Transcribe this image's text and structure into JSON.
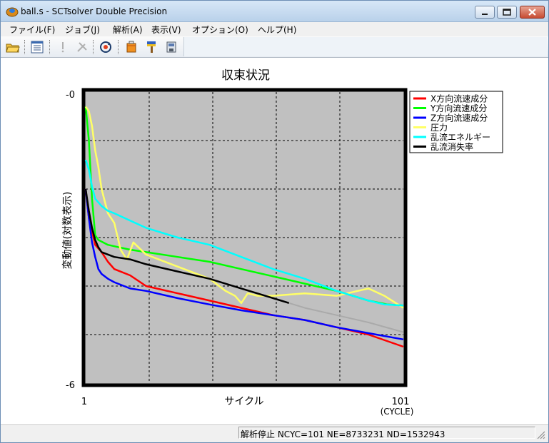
{
  "window": {
    "title": "ball.s - SCTsolver Double Precision",
    "controls": [
      "minimize",
      "maximize",
      "close"
    ]
  },
  "menu": [
    {
      "label": "ファイル(F)"
    },
    {
      "label": "ジョブ(J)"
    },
    {
      "label": "解析(A)"
    },
    {
      "label": "表示(V)"
    },
    {
      "label": "オプション(O)"
    },
    {
      "label": "ヘルプ(H)"
    }
  ],
  "toolbar": {
    "icons": [
      "open-folder-icon",
      "list-icon",
      "stop-icon",
      "tools-icon",
      "refresh-icon",
      "paint-bucket-icon",
      "brush-icon",
      "save-icon"
    ]
  },
  "status": {
    "text": "解析停止  NCYC=101  NE=8733231  ND=1532943"
  },
  "chart_data": {
    "type": "line",
    "title": "収束状況",
    "xlabel": "サイクル",
    "xlabel_unit": "(CYCLE)",
    "ylabel": "変動値(対数表示)",
    "xlim": [
      1,
      101
    ],
    "ylim": [
      -6,
      0
    ],
    "x_tick_labels": [
      "1",
      "101"
    ],
    "y_tick_labels": [
      "-0",
      "-6"
    ],
    "grid": true,
    "plot_background": "#c0c0c0",
    "legend_position": "right-top",
    "series": [
      {
        "name": "X方向流速成分",
        "color": "#ff0000",
        "x": [
          1,
          2,
          4,
          6,
          8,
          10,
          15,
          20,
          30,
          40,
          50,
          60,
          70,
          80,
          90,
          101
        ],
        "y": [
          -2.0,
          -2.6,
          -3.15,
          -3.3,
          -3.5,
          -3.65,
          -3.78,
          -4.0,
          -4.15,
          -4.3,
          -4.45,
          -4.6,
          -4.7,
          -4.85,
          -5.0,
          -5.25
        ]
      },
      {
        "name": "Y方向流速成分",
        "color": "#00ff00",
        "x": [
          1,
          2,
          3,
          4,
          5,
          8,
          10,
          15,
          20,
          30,
          40,
          50,
          60,
          70,
          80,
          90,
          96,
          101
        ],
        "y": [
          -0.3,
          -1.0,
          -2.2,
          -2.95,
          -3.05,
          -3.15,
          -3.18,
          -3.25,
          -3.3,
          -3.4,
          -3.5,
          -3.65,
          -3.8,
          -3.95,
          -4.1,
          -4.3,
          -4.38,
          -4.4
        ]
      },
      {
        "name": "Z方向流速成分",
        "color": "#0000ff",
        "x": [
          1,
          2,
          3,
          4,
          5,
          6,
          8,
          10,
          15,
          20,
          30,
          40,
          50,
          60,
          70,
          80,
          90,
          101
        ],
        "y": [
          -2.0,
          -2.6,
          -3.1,
          -3.4,
          -3.65,
          -3.75,
          -3.85,
          -3.92,
          -4.05,
          -4.1,
          -4.25,
          -4.38,
          -4.5,
          -4.6,
          -4.7,
          -4.85,
          -4.97,
          -5.1
        ]
      },
      {
        "name": "圧力",
        "color": "#ffff66",
        "x": [
          1,
          2,
          3,
          4,
          5,
          6,
          7,
          8,
          10,
          12,
          14,
          16,
          20,
          30,
          40,
          45,
          48,
          50,
          52,
          55,
          60,
          70,
          80,
          90,
          95,
          101
        ],
        "y": [
          -0.3,
          -0.4,
          -0.7,
          -1.2,
          -1.55,
          -2.0,
          -2.25,
          -2.5,
          -2.7,
          -3.25,
          -3.45,
          -3.1,
          -3.35,
          -3.6,
          -3.85,
          -4.1,
          -4.2,
          -4.35,
          -4.15,
          -4.2,
          -4.2,
          -4.15,
          -4.2,
          -4.05,
          -4.2,
          -4.45
        ]
      },
      {
        "name": "乱流エネルギー",
        "color": "#00ffff",
        "x": [
          1,
          2,
          3,
          4,
          6,
          8,
          10,
          15,
          20,
          30,
          40,
          50,
          60,
          70,
          80,
          90,
          95,
          101
        ],
        "y": [
          -1.4,
          -1.6,
          -1.95,
          -2.2,
          -2.35,
          -2.45,
          -2.5,
          -2.65,
          -2.8,
          -3.0,
          -3.15,
          -3.4,
          -3.65,
          -3.85,
          -4.1,
          -4.3,
          -4.38,
          -4.4
        ]
      },
      {
        "name": "乱流消失率",
        "color": "#000000",
        "x": [
          1,
          2,
          3,
          4,
          5,
          6,
          8,
          10,
          15,
          20,
          30,
          40,
          50,
          60,
          65
        ],
        "y": [
          -2.0,
          -2.45,
          -2.8,
          -3.05,
          -3.2,
          -3.3,
          -3.35,
          -3.4,
          -3.45,
          -3.55,
          -3.7,
          -3.85,
          -4.05,
          -4.25,
          -4.35
        ]
      },
      {
        "name": "",
        "color": "#aaaaaa",
        "x": [
          65,
          70,
          80,
          90,
          101
        ],
        "y": [
          -4.35,
          -4.45,
          -4.6,
          -4.75,
          -4.95
        ]
      }
    ]
  }
}
